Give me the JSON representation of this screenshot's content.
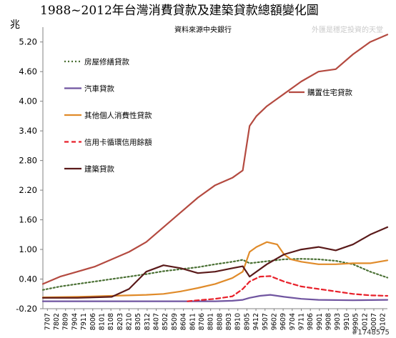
{
  "chart_data": {
    "type": "line",
    "title": "1988~2012年台灣消費貸款及建築貸款總額變化圖",
    "ylabel": "兆",
    "source": "資料來源中央銀行",
    "watermark": "外匯是穩定投資的天堂",
    "corner_tag": "#1748575",
    "ylim": [
      -0.2,
      5.5
    ],
    "yticks": [
      "5.20",
      "4.60",
      "4.00",
      "3.40",
      "2.80",
      "2.20",
      "1.60",
      "1.00",
      "0.40",
      "-0.20"
    ],
    "ytick_values": [
      5.2,
      4.6,
      4.0,
      3.4,
      2.8,
      2.2,
      1.6,
      1.0,
      0.4,
      -0.2
    ],
    "xticks": [
      "7707",
      "7802",
      "7809",
      "7904",
      "7911",
      "8006",
      "8101",
      "8108",
      "8203",
      "8210",
      "8305",
      "8312",
      "8407",
      "8502",
      "8509",
      "8604",
      "8611",
      "8706",
      "8801",
      "8808",
      "8903",
      "8910",
      "8905",
      "9412",
      "9507",
      "9602",
      "9609",
      "9704",
      "9711",
      "9806",
      "9901",
      "9908",
      "9903",
      "9910",
      "9905",
      "0012",
      "0007",
      "0102"
    ],
    "series": [
      {
        "name": "房屋修繕貸款",
        "color": "#4a7034",
        "dash": "dotted",
        "x": [
          0,
          0.05,
          0.1,
          0.15,
          0.2,
          0.25,
          0.3,
          0.35,
          0.4,
          0.45,
          0.5,
          0.55,
          0.58,
          0.6,
          0.65,
          0.7,
          0.75,
          0.8,
          0.85,
          0.9,
          0.95,
          1.0
        ],
        "values": [
          0.18,
          0.25,
          0.3,
          0.35,
          0.4,
          0.45,
          0.5,
          0.56,
          0.6,
          0.64,
          0.7,
          0.75,
          0.79,
          0.72,
          0.76,
          0.8,
          0.81,
          0.8,
          0.77,
          0.7,
          0.55,
          0.43
        ]
      },
      {
        "name": "汽車貸款",
        "color": "#7055a0",
        "dash": "solid",
        "x": [
          0,
          0.1,
          0.2,
          0.3,
          0.4,
          0.5,
          0.55,
          0.58,
          0.6,
          0.63,
          0.66,
          0.7,
          0.75,
          0.8,
          0.9,
          1.0
        ],
        "values": [
          -0.05,
          -0.05,
          -0.05,
          -0.05,
          -0.05,
          -0.05,
          -0.04,
          -0.02,
          0.02,
          0.06,
          0.08,
          0.04,
          0.0,
          -0.02,
          -0.03,
          -0.02
        ]
      },
      {
        "name": "其他個人消費性貸款",
        "color": "#e08b2a",
        "dash": "solid",
        "x": [
          0,
          0.1,
          0.2,
          0.3,
          0.35,
          0.4,
          0.45,
          0.5,
          0.55,
          0.58,
          0.6,
          0.62,
          0.65,
          0.68,
          0.7,
          0.72,
          0.75,
          0.8,
          0.85,
          0.9,
          0.95,
          1.0
        ],
        "values": [
          0.03,
          0.04,
          0.06,
          0.08,
          0.1,
          0.15,
          0.22,
          0.3,
          0.42,
          0.55,
          0.95,
          1.05,
          1.15,
          1.1,
          0.9,
          0.8,
          0.75,
          0.7,
          0.7,
          0.72,
          0.72,
          0.78
        ]
      },
      {
        "name": "信用卡循環信用餘額",
        "color": "#e8202a",
        "dash": "dashed",
        "x": [
          0.42,
          0.45,
          0.5,
          0.55,
          0.58,
          0.6,
          0.63,
          0.66,
          0.7,
          0.75,
          0.8,
          0.85,
          0.9,
          0.95,
          1.0
        ],
        "values": [
          -0.05,
          -0.03,
          0.0,
          0.05,
          0.2,
          0.35,
          0.45,
          0.46,
          0.35,
          0.25,
          0.2,
          0.15,
          0.1,
          0.07,
          0.06
        ]
      },
      {
        "name": "建築貸款",
        "color": "#5a1a1a",
        "dash": "solid",
        "x": [
          0,
          0.1,
          0.2,
          0.25,
          0.3,
          0.35,
          0.4,
          0.45,
          0.5,
          0.55,
          0.58,
          0.6,
          0.65,
          0.7,
          0.75,
          0.8,
          0.85,
          0.9,
          0.95,
          1.0
        ],
        "values": [
          0.02,
          0.02,
          0.04,
          0.2,
          0.55,
          0.68,
          0.62,
          0.52,
          0.55,
          0.62,
          0.66,
          0.45,
          0.7,
          0.9,
          1.0,
          1.05,
          0.98,
          1.1,
          1.3,
          1.45
        ]
      },
      {
        "name": "購置住宅貸款",
        "color": "#b44a40",
        "dash": "solid",
        "x": [
          0,
          0.05,
          0.1,
          0.15,
          0.2,
          0.25,
          0.3,
          0.35,
          0.4,
          0.45,
          0.5,
          0.55,
          0.58,
          0.6,
          0.62,
          0.65,
          0.7,
          0.75,
          0.8,
          0.85,
          0.9,
          0.95,
          1.0
        ],
        "values": [
          0.3,
          0.45,
          0.55,
          0.65,
          0.8,
          0.95,
          1.15,
          1.45,
          1.75,
          2.05,
          2.3,
          2.45,
          2.6,
          3.5,
          3.7,
          3.9,
          4.15,
          4.4,
          4.6,
          4.65,
          4.95,
          5.2,
          5.35
        ]
      }
    ],
    "legend": [
      {
        "name": "房屋修繕貸款",
        "position": "upper-left"
      },
      {
        "name": "汽車貸款",
        "position": "upper-left"
      },
      {
        "name": "其他個人消費性貸款",
        "position": "upper-left"
      },
      {
        "name": "信用卡循環信用餘額",
        "position": "upper-left"
      },
      {
        "name": "建築貸款",
        "position": "upper-left"
      },
      {
        "name": "購置住宅貸款",
        "position": "right"
      }
    ]
  }
}
